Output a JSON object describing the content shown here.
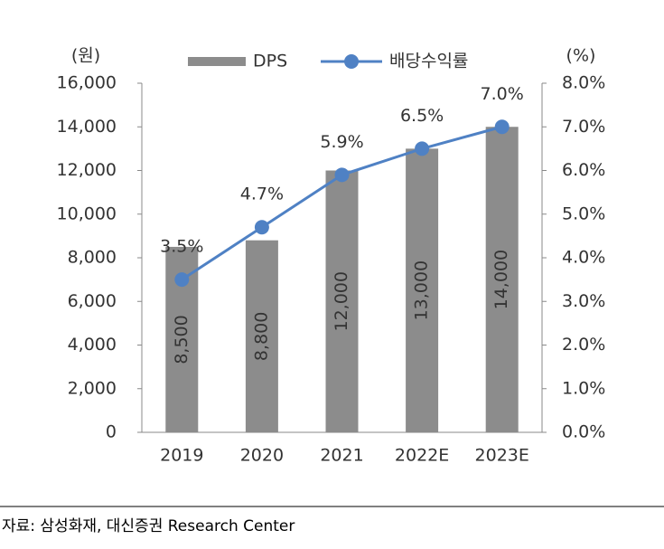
{
  "chart_data": {
    "type": "bar",
    "categories": [
      "2019",
      "2020",
      "2021",
      "2022E",
      "2023E"
    ],
    "series": [
      {
        "name": "DPS",
        "color": "#8c8c8c",
        "values": [
          8500,
          8800,
          12000,
          13000,
          14000
        ],
        "value_labels": [
          "8,500",
          "8,800",
          "12,000",
          "13,000",
          "14,000"
        ]
      },
      {
        "name": "배당수익률",
        "color": "#4f81c4",
        "type": "line",
        "axis": "y2",
        "values": [
          3.5,
          4.7,
          5.9,
          6.5,
          7.0
        ],
        "value_labels": [
          "3.5%",
          "4.7%",
          "5.9%",
          "6.5%",
          "7.0%"
        ]
      }
    ],
    "y_unit": "(원)",
    "y2_unit": "(%)",
    "ylim": [
      0,
      16000
    ],
    "yticks": [
      0,
      {
        "value": 2000,
        "label": "2,000"
      },
      {
        "value": 4000,
        "label": "4,000"
      },
      {
        "value": 6000,
        "label": "6,000"
      },
      {
        "value": 8000,
        "label": "8,000"
      },
      {
        "value": 10000,
        "label": "10,000"
      },
      {
        "value": 12000,
        "label": "12,000"
      },
      {
        "value": 14000,
        "label": "14,000"
      },
      {
        "value": 16000,
        "label": "16,000"
      }
    ],
    "y2lim": [
      0,
      8
    ],
    "y2ticks": [
      {
        "value": 0,
        "label": "0.0%"
      },
      {
        "value": 1,
        "label": "1.0%"
      },
      {
        "value": 2,
        "label": "2.0%"
      },
      {
        "value": 3,
        "label": "3.0%"
      },
      {
        "value": 4,
        "label": "4.0%"
      },
      {
        "value": 5,
        "label": "5.0%"
      },
      {
        "value": 6,
        "label": "6.0%"
      },
      {
        "value": 7,
        "label": "7.0%"
      },
      {
        "value": 8,
        "label": "8.0%"
      }
    ],
    "source": "자료: 삼성화재, 대신증권 Research Center"
  }
}
